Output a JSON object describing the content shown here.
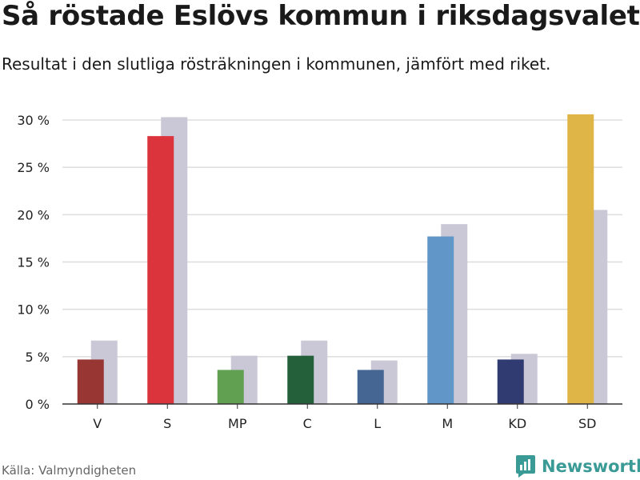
{
  "header": {
    "title": "Så röstade Eslövs kommun i riksdagsvalet",
    "subtitle": "Resultat i den slutliga rösträkningen i kommunen, jämfört med riket."
  },
  "footer": {
    "source": "Källa: Valmyndigheten",
    "brand": "Newsworthy",
    "brand_icon": "bar-chart-icon",
    "brand_color": "#3a9a95"
  },
  "chart_data": {
    "type": "bar",
    "categories": [
      "V",
      "S",
      "MP",
      "C",
      "L",
      "M",
      "KD",
      "SD"
    ],
    "series": [
      {
        "values": [
          4.7,
          28.3,
          3.6,
          5.1,
          3.6,
          17.7,
          4.7,
          30.6
        ]
      },
      {
        "values": [
          6.7,
          30.3,
          5.1,
          6.7,
          4.6,
          19.0,
          5.3,
          20.5
        ]
      }
    ],
    "colors": [
      "#983634",
      "#dc343c",
      "#61a050",
      "#24603a",
      "#456593",
      "#6096c8",
      "#2f3b71",
      "#deb546"
    ],
    "comparison_color": "#cac8d6",
    "ylim": [
      0,
      30
    ],
    "yticks": [
      0,
      5,
      10,
      15,
      20,
      25,
      30
    ],
    "ytick_labels": [
      "0 %",
      "5 %",
      "10 %",
      "15 %",
      "20 %",
      "25 %",
      "30 %"
    ],
    "grid": true
  }
}
